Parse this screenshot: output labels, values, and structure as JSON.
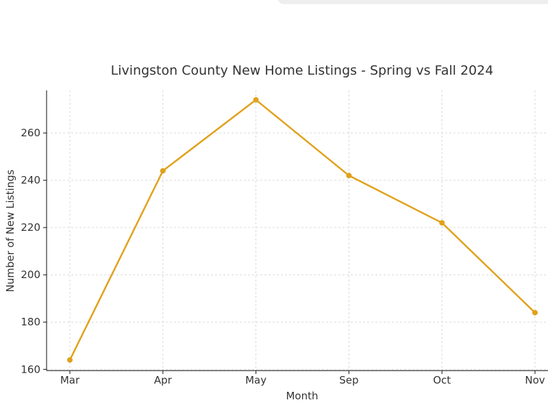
{
  "chart_data": {
    "type": "line",
    "title": "Livingston County New Home Listings - Spring vs Fall 2024",
    "xlabel": "Month",
    "ylabel": "Number of New Listings",
    "categories": [
      "Mar",
      "Apr",
      "May",
      "Sep",
      "Oct",
      "Nov"
    ],
    "series": [
      {
        "values": [
          164,
          244,
          274,
          242,
          222,
          184
        ],
        "color": "#e0a11b"
      }
    ],
    "ylim": [
      159.5,
      278
    ],
    "yticks": [
      160,
      180,
      200,
      220,
      240,
      260
    ],
    "grid": true,
    "legend": "none"
  }
}
